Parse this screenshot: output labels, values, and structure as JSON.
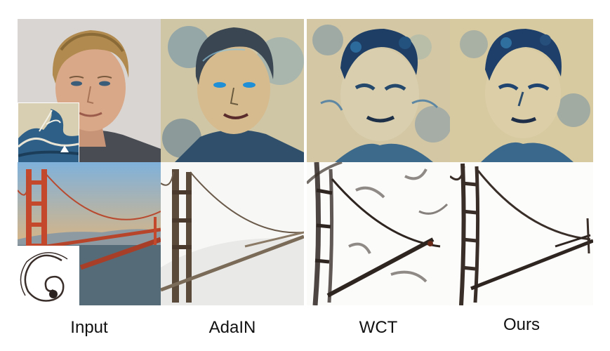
{
  "figure": {
    "columns": [
      {
        "key": "input",
        "label": "Input"
      },
      {
        "key": "adain",
        "label": "AdaIN"
      },
      {
        "key": "wct",
        "label": "WCT"
      },
      {
        "key": "ours",
        "label": "Ours"
      }
    ],
    "rows": [
      {
        "key": "portrait",
        "content": "portrait-photo",
        "style_inset": "great-wave-painting"
      },
      {
        "key": "bridge",
        "content": "golden-gate-bridge-photo",
        "style_inset": "spiral-line-drawing"
      }
    ]
  },
  "colors": {
    "background": "#ffffff",
    "label_text": "#111111",
    "bridge_orange": "#c4482b",
    "sky_blue": "#7fb1db",
    "sketch_dark": "#2e2420",
    "wave_blue": "#2e5f86"
  }
}
